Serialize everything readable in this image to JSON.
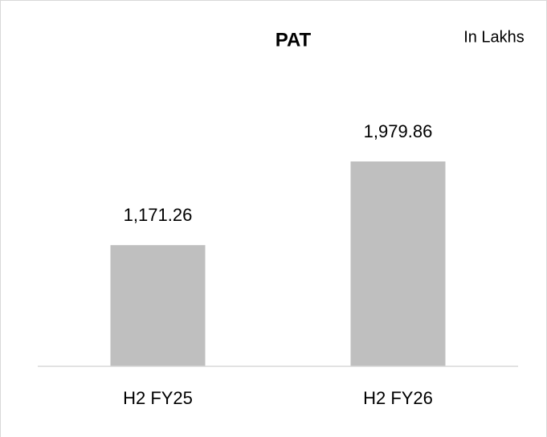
{
  "chart_data": {
    "type": "bar",
    "title": "PAT",
    "subtitle": "In Lakhs",
    "categories": [
      "H2 FY25",
      "H2 FY26"
    ],
    "values": [
      1171.26,
      1979.86
    ],
    "value_labels": [
      "1,171.26",
      "1,979.86"
    ],
    "color": "#bfbfbf",
    "ylim": [
      0,
      2500
    ]
  }
}
